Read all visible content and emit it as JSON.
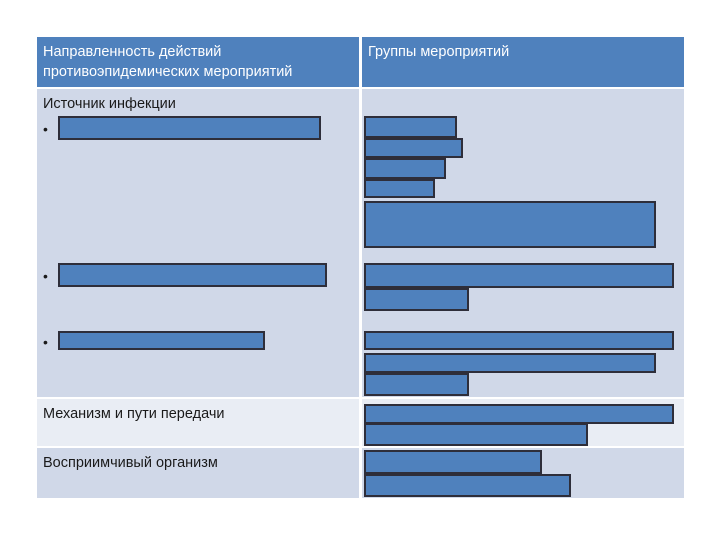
{
  "table": {
    "header": {
      "col1": "Направленность действий противоэпидемических мероприятий",
      "col2": "Группы мероприятий"
    },
    "rows": [
      {
        "label": "Источник инфекции"
      },
      {
        "label": "Механизм и пути передачи"
      },
      {
        "label": "Восприимчивый организм"
      }
    ],
    "bullet_char": "•"
  },
  "colors": {
    "header_bg": "#4f81bd",
    "row_dark_bg": "#d0d8e8",
    "row_light_bg": "#e9edf4",
    "redaction_bar": "#4f81bd"
  }
}
